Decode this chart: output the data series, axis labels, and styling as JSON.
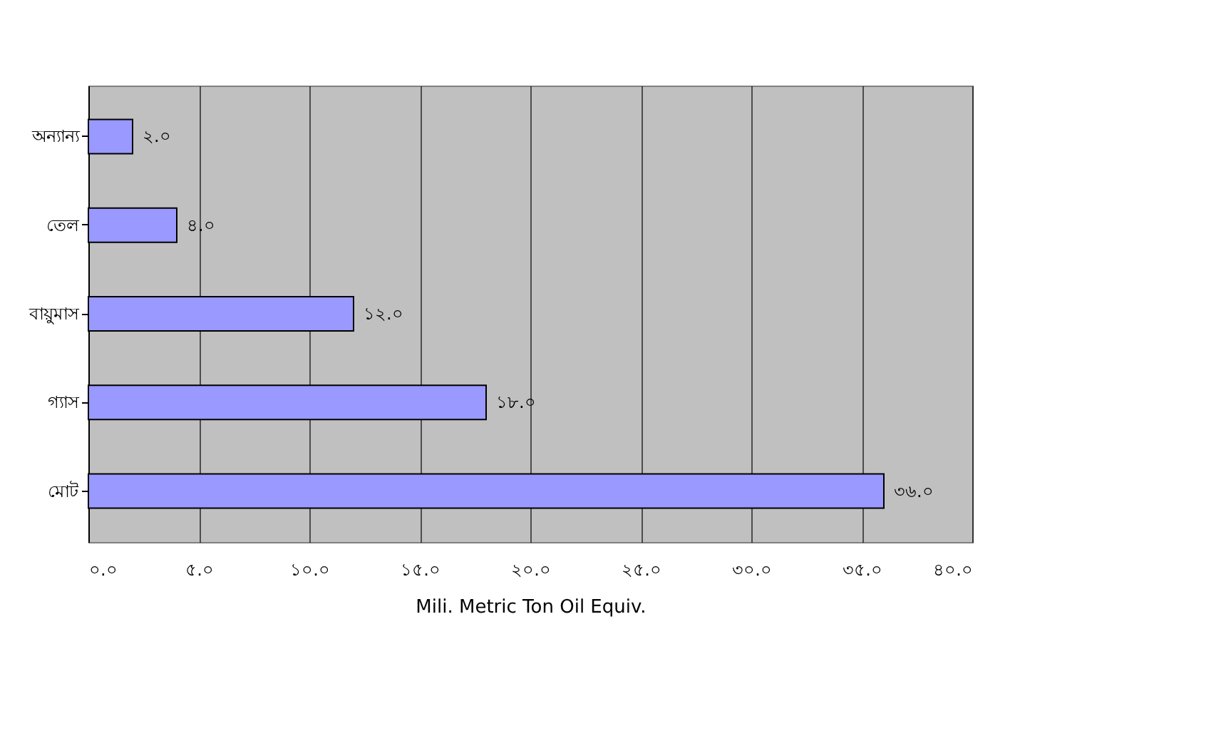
{
  "chart_data": {
    "type": "bar",
    "orientation": "horizontal",
    "categories": [
      "অন্যান্য",
      "তেল",
      "বায়ুমাস",
      "গ্যাস",
      "মোট"
    ],
    "series": [
      {
        "color": "#9999ff",
        "values": [
          2.0,
          4.0,
          12.0,
          18.0,
          36.0
        ]
      }
    ],
    "value_labels": [
      "২.০",
      "৪.০",
      "১২.০",
      "১৮.০",
      "৩৬.০"
    ],
    "xlabel": "Mili. Metric Ton Oil Equiv.",
    "xlim": [
      0,
      40
    ],
    "xticks": [
      {
        "value": 0,
        "label": "০.০"
      },
      {
        "value": 5,
        "label": "৫.০"
      },
      {
        "value": 10,
        "label": "১০.০"
      },
      {
        "value": 15,
        "label": "১৫.০"
      },
      {
        "value": 20,
        "label": "২০.০"
      },
      {
        "value": 25,
        "label": "২৫.০"
      },
      {
        "value": 30,
        "label": "৩০.০"
      },
      {
        "value": 35,
        "label": "৩৫.০"
      },
      {
        "value": 40,
        "label": "৪০.০"
      }
    ],
    "grid": "x"
  }
}
